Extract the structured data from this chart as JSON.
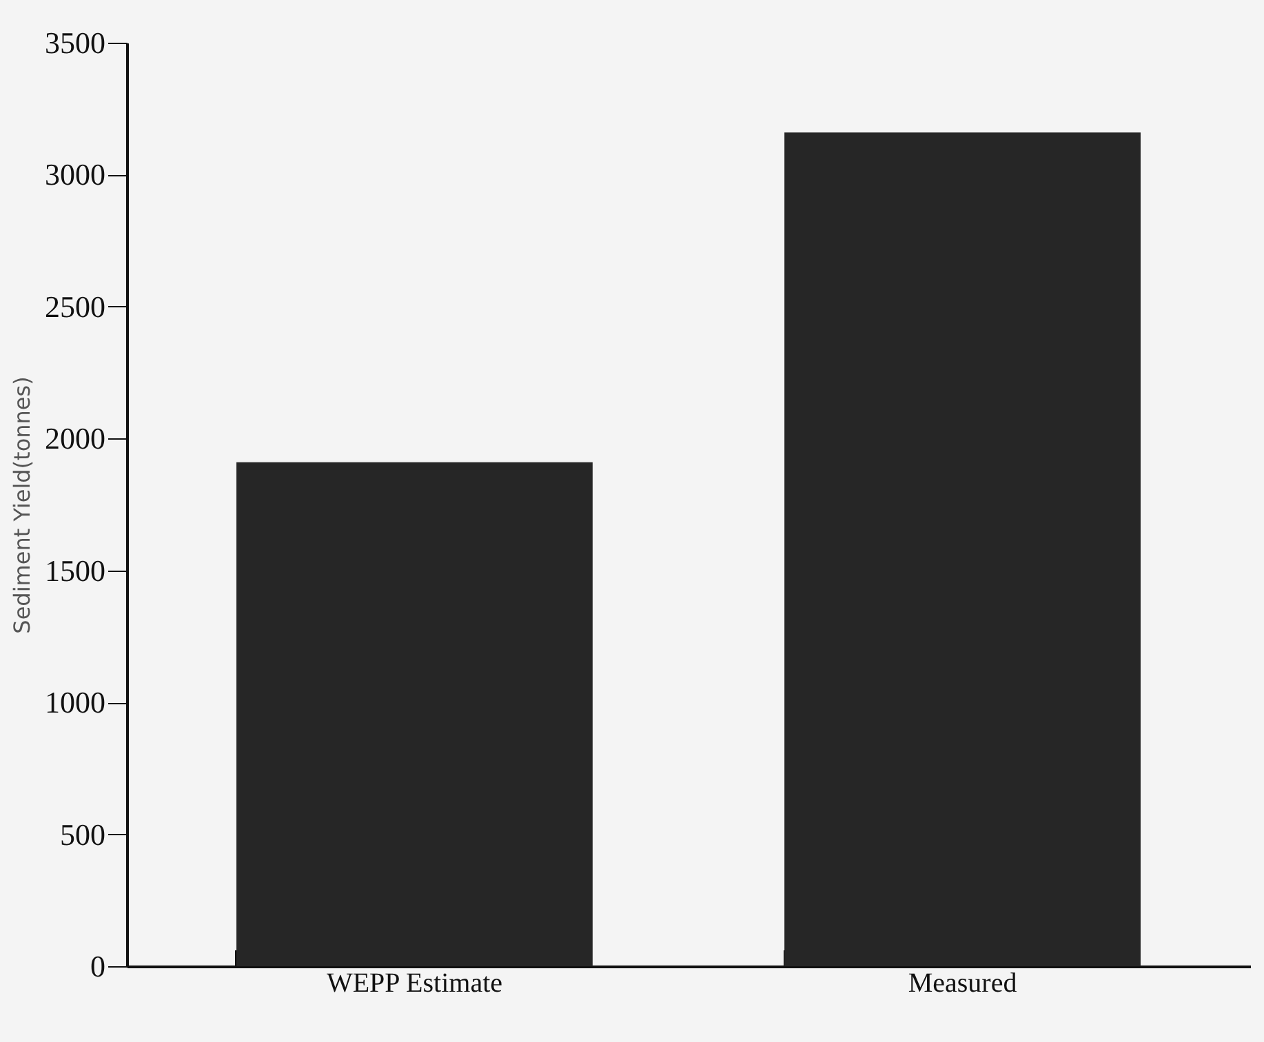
{
  "chart_data": {
    "type": "bar",
    "ylabel": "Sediment   Yield(tonnes)",
    "categories": [
      "WEPP Estimate",
      "Measured"
    ],
    "values": [
      1910,
      3160
    ],
    "color": "#262626",
    "ylim": [
      0,
      3500
    ],
    "yticks": [
      0,
      500,
      1000,
      1500,
      2000,
      2500,
      3000,
      3500
    ],
    "grid": false
  }
}
